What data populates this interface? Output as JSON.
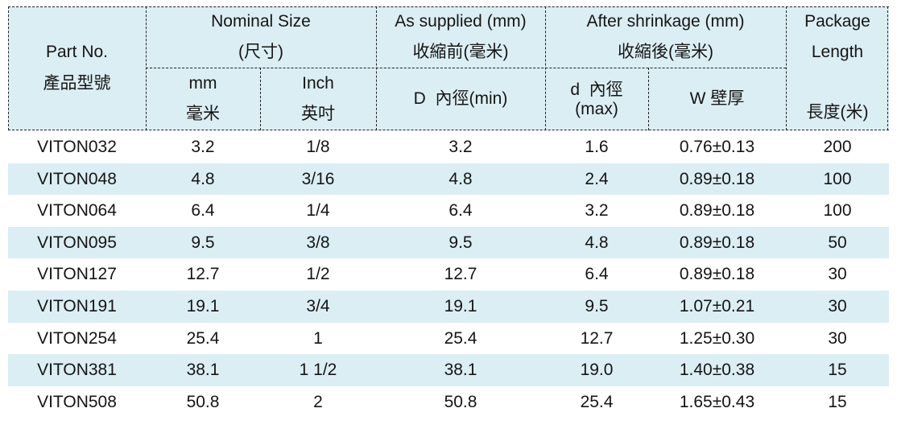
{
  "colors": {
    "header_bg": "#dbeef4",
    "stripe_bg": "#dbeef4",
    "border": "#222222",
    "text": "#151515"
  },
  "header": {
    "part_no": {
      "en": "Part No.",
      "zh": "產品型號"
    },
    "nominal_size": {
      "en": "Nominal Size",
      "zh": "(尺寸)"
    },
    "mm": {
      "en": "mm",
      "zh": "毫米"
    },
    "inch": {
      "en": "Inch",
      "zh": "英吋"
    },
    "as_supplied": {
      "en": "As supplied (mm)",
      "zh": "收縮前(毫米)"
    },
    "d_min": "D  內徑(min)",
    "after_shrinkage": {
      "en": "After shrinkage (mm)",
      "zh": "收縮後(毫米)"
    },
    "d_max": {
      "line1": "d  內徑",
      "line2": "(max)"
    },
    "wall": "W 壁厚",
    "package": {
      "line1": "Package",
      "line2": "Length",
      "zh": "長度(米)"
    }
  },
  "rows": [
    {
      "part_no": "VITON032",
      "mm": "3.2",
      "inch": "1/8",
      "d_min": "3.2",
      "d_max": "1.6",
      "wall": "0.76±0.13",
      "length": "200"
    },
    {
      "part_no": "VITON048",
      "mm": "4.8",
      "inch": "3/16",
      "d_min": "4.8",
      "d_max": "2.4",
      "wall": "0.89±0.18",
      "length": "100"
    },
    {
      "part_no": "VITON064",
      "mm": "6.4",
      "inch": "1/4",
      "d_min": "6.4",
      "d_max": "3.2",
      "wall": "0.89±0.18",
      "length": "100"
    },
    {
      "part_no": "VITON095",
      "mm": "9.5",
      "inch": "3/8",
      "d_min": "9.5",
      "d_max": "4.8",
      "wall": "0.89±0.18",
      "length": "50"
    },
    {
      "part_no": "VITON127",
      "mm": "12.7",
      "inch": "1/2",
      "d_min": "12.7",
      "d_max": "6.4",
      "wall": "0.89±0.18",
      "length": "30"
    },
    {
      "part_no": "VITON191",
      "mm": "19.1",
      "inch": "3/4",
      "d_min": "19.1",
      "d_max": "9.5",
      "wall": "1.07±0.21",
      "length": "30"
    },
    {
      "part_no": "VITON254",
      "mm": "25.4",
      "inch": "1",
      "d_min": "25.4",
      "d_max": "12.7",
      "wall": "1.25±0.30",
      "length": "30"
    },
    {
      "part_no": "VITON381",
      "mm": "38.1",
      "inch": "1 1/2",
      "d_min": "38.1",
      "d_max": "19.0",
      "wall": "1.40±0.38",
      "length": "15"
    },
    {
      "part_no": "VITON508",
      "mm": "50.8",
      "inch": "2",
      "d_min": "50.8",
      "d_max": "25.4",
      "wall": "1.65±0.43",
      "length": "15"
    }
  ]
}
